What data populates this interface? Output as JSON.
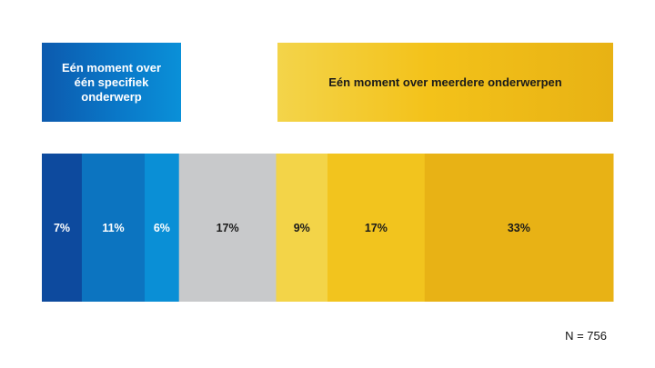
{
  "header": {
    "left_label": "Eén moment over\néén specifiek\nonderwerp",
    "right_label": "Eén moment over meerdere onderwerpen"
  },
  "chart_data": {
    "type": "bar",
    "orientation": "horizontal-stacked",
    "unit": "%",
    "categories": [
      "7%",
      "11%",
      "6%",
      "17%",
      "9%",
      "17%",
      "33%"
    ],
    "values": [
      7,
      11,
      6,
      17,
      9,
      17,
      33
    ],
    "colors": [
      "#0d4a9e",
      "#0c74c0",
      "#0a8fd6",
      "#c8c9cb",
      "#f3d448",
      "#f2c41e",
      "#e8b215"
    ],
    "label_colors": [
      "#ffffff",
      "#ffffff",
      "#ffffff",
      "#1a1a1a",
      "#1a1a1a",
      "#1a1a1a",
      "#1a1a1a"
    ],
    "title": "",
    "xlabel": "",
    "ylabel": ""
  },
  "footnote": "N = 756"
}
